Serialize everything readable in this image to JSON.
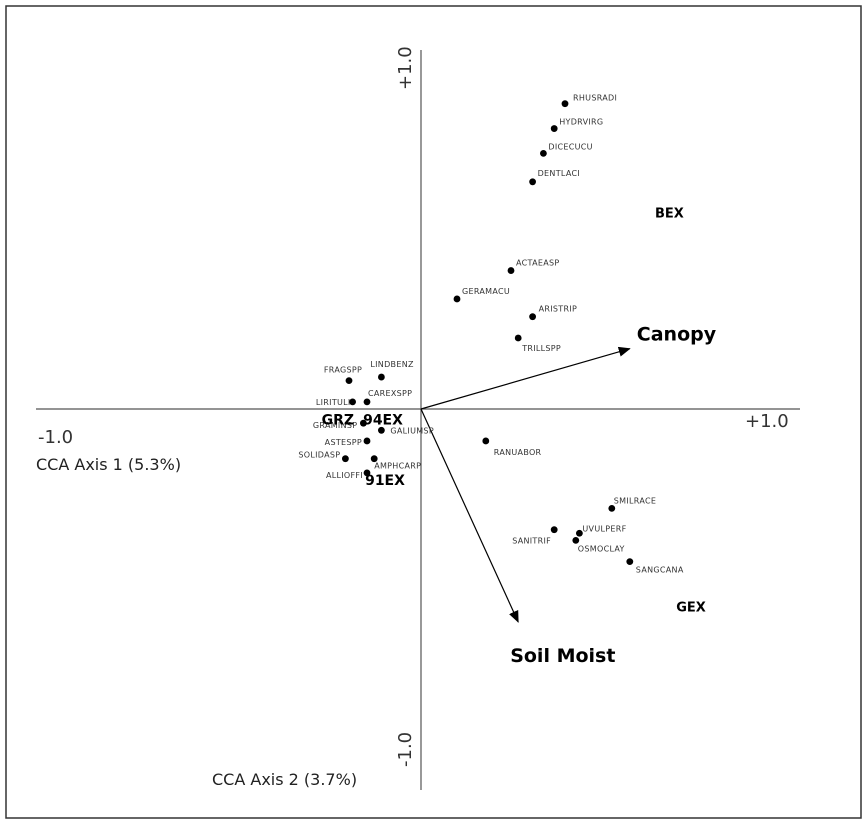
{
  "chart_data": {
    "type": "scatter",
    "subtype": "CCA ordination biplot",
    "x_axis": {
      "label": "CCA Axis 1 (5.3%)",
      "range": [
        -1.0,
        1.0
      ],
      "tick_min_label": "-1.0",
      "tick_max_label": "+1.0"
    },
    "y_axis": {
      "label": "CCA Axis 2 (3.7%)",
      "range": [
        -1.0,
        1.0
      ],
      "tick_min_label": "-1.0",
      "tick_max_label": "+1.0"
    },
    "species": [
      {
        "name": "RHUSRADI",
        "x": 0.4,
        "y": 0.86
      },
      {
        "name": "HYDRVIRG",
        "x": 0.37,
        "y": 0.79
      },
      {
        "name": "DICECUCU",
        "x": 0.34,
        "y": 0.72
      },
      {
        "name": "DENTLACI",
        "x": 0.31,
        "y": 0.64
      },
      {
        "name": "ACTAEASP",
        "x": 0.25,
        "y": 0.39
      },
      {
        "name": "GERAMACU",
        "x": 0.1,
        "y": 0.31
      },
      {
        "name": "ARISTRIP",
        "x": 0.31,
        "y": 0.26
      },
      {
        "name": "TRILLSPP",
        "x": 0.27,
        "y": 0.2
      },
      {
        "name": "FRAGSPP",
        "x": -0.2,
        "y": 0.08
      },
      {
        "name": "LINDBENZ",
        "x": -0.11,
        "y": 0.09
      },
      {
        "name": "CAREXSPP",
        "x": -0.15,
        "y": 0.02
      },
      {
        "name": "LIRITULI",
        "x": -0.19,
        "y": 0.02
      },
      {
        "name": "GRAMINSP",
        "x": -0.16,
        "y": -0.04
      },
      {
        "name": "GALIUMSP",
        "x": -0.11,
        "y": -0.06
      },
      {
        "name": "ASTESPP",
        "x": -0.15,
        "y": -0.09
      },
      {
        "name": "SOLIDASP",
        "x": -0.21,
        "y": -0.14
      },
      {
        "name": "AMPHCARP",
        "x": -0.13,
        "y": -0.14
      },
      {
        "name": "ALLIOFFI",
        "x": -0.15,
        "y": -0.18
      },
      {
        "name": "RANUABOR",
        "x": 0.18,
        "y": -0.09
      },
      {
        "name": "SMILRACE",
        "x": 0.53,
        "y": -0.28
      },
      {
        "name": "UVULPERF",
        "x": 0.44,
        "y": -0.35
      },
      {
        "name": "SANITRIF",
        "x": 0.37,
        "y": -0.34
      },
      {
        "name": "OSMOCLAY",
        "x": 0.43,
        "y": -0.37
      },
      {
        "name": "SANGCANA",
        "x": 0.58,
        "y": -0.43
      }
    ],
    "treatments": [
      {
        "name": "BEX",
        "x": 0.69,
        "y": 0.54
      },
      {
        "name": "GEX",
        "x": 0.75,
        "y": -0.57
      },
      {
        "name": "GRZ",
        "x": -0.22,
        "y": -0.03
      },
      {
        "name": "94EX",
        "x": -0.1,
        "y": -0.03
      },
      {
        "name": "91EX",
        "x": -0.1,
        "y": -0.2
      }
    ],
    "environmental_vectors": [
      {
        "name": "Canopy",
        "x": 0.58,
        "y": 0.17
      },
      {
        "name": "Soil Moist",
        "x": 0.27,
        "y": -0.6
      }
    ]
  }
}
